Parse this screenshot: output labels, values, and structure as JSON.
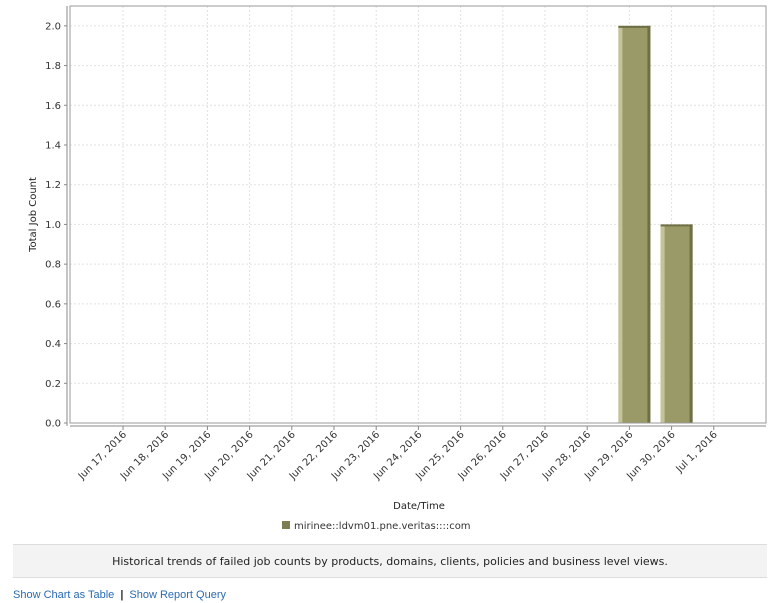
{
  "chart_data": {
    "type": "bar",
    "categories": [
      "Jun 17, 2016",
      "Jun 18, 2016",
      "Jun 19, 2016",
      "Jun 20, 2016",
      "Jun 21, 2016",
      "Jun 22, 2016",
      "Jun 23, 2016",
      "Jun 24, 2016",
      "Jun 25, 2016",
      "Jun 26, 2016",
      "Jun 27, 2016",
      "Jun 28, 2016",
      "Jun 29, 2016",
      "Jun 30, 2016",
      "Jul 1, 2016"
    ],
    "series": [
      {
        "name": "mirinee::ldvm01.pne.veritas::::com",
        "values": [
          0,
          0,
          0,
          0,
          0,
          0,
          0,
          0,
          0,
          0,
          0,
          0,
          2,
          1,
          0
        ]
      }
    ],
    "xlabel": "Date/Time",
    "ylabel": "Total Job Count",
    "ylim": [
      0,
      2.1
    ],
    "yticks": [
      "0.0",
      "0.2",
      "0.4",
      "0.6",
      "0.8",
      "1.0",
      "1.2",
      "1.4",
      "1.6",
      "1.8",
      "2.0"
    ],
    "grid": true,
    "legend": "bottom-center",
    "colors": {
      "bar": "#9a9a68",
      "bar_light": "#c4c49a",
      "bar_dark": "#6f6f45",
      "grid": "#e2e2e2"
    }
  },
  "description": "Historical trends of failed job counts by products, domains, clients, policies and business level views.",
  "links": {
    "show_table": "Show Chart as Table",
    "separator": "|",
    "show_query": "Show Report Query"
  }
}
